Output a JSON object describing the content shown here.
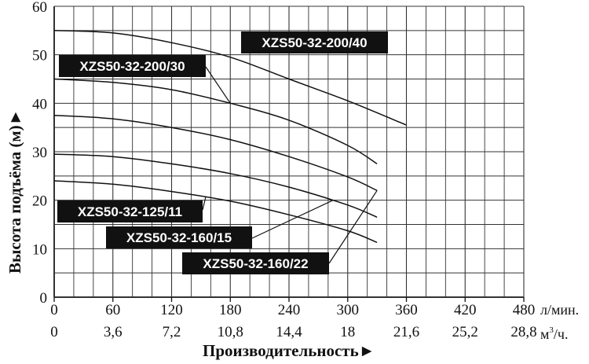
{
  "chart_data": {
    "type": "line",
    "title": "",
    "xlabel": "Производительность►",
    "ylabel": "Высота подъёма (м)►",
    "x_unit_top": "л/мин.",
    "x_unit_bottom_main": "м",
    "x_unit_bottom_sup": "3",
    "x_unit_bottom_tail": "/ч.",
    "xlim": [
      0,
      480
    ],
    "ylim": [
      0,
      60
    ],
    "x_ticks": [
      0,
      60,
      120,
      180,
      240,
      300,
      360,
      420,
      480
    ],
    "x_ticks_top": [
      "0",
      "60",
      "120",
      "180",
      "240",
      "300",
      "360",
      "420",
      "480"
    ],
    "x_ticks_bottom": [
      "0",
      "3,6",
      "7,2",
      "10,8",
      "14,4",
      "18",
      "21,6",
      "25,2",
      "28,8"
    ],
    "y_ticks": [
      "0",
      "10",
      "20",
      "30",
      "40",
      "50",
      "60"
    ],
    "grid": true,
    "series": [
      {
        "name": "XZS50-32-200/40",
        "x": [
          0,
          60,
          120,
          180,
          240,
          300,
          360
        ],
        "y": [
          55,
          54.5,
          52.5,
          49.5,
          45,
          40.5,
          35.5
        ]
      },
      {
        "name": "XZS50-32-200/30",
        "x": [
          0,
          60,
          120,
          180,
          240,
          300,
          330
        ],
        "y": [
          45,
          44.3,
          42.8,
          40,
          36.5,
          31.3,
          27.5
        ]
      },
      {
        "name": "",
        "x": [
          0,
          60,
          120,
          180,
          240,
          300,
          330
        ],
        "y": [
          37.5,
          36.8,
          35,
          32.5,
          29,
          24.8,
          22
        ]
      },
      {
        "name": "XZS50-32-160/22",
        "x": [
          0,
          60,
          120,
          180,
          240,
          300,
          330
        ],
        "y": [
          29.5,
          29,
          27.5,
          25.5,
          22.7,
          19,
          16.5
        ]
      },
      {
        "name": "",
        "x": [
          0,
          60,
          120,
          180,
          240,
          300,
          330
        ],
        "y": [
          24,
          23.3,
          21.8,
          19.8,
          17,
          13.7,
          11.3
        ]
      }
    ],
    "annotations": [
      {
        "text": "XZS50-32-200/40",
        "arrow_to": [
          210,
          50.3
        ]
      },
      {
        "text": "XZS50-32-200/30",
        "arrow_to": [
          180,
          40
        ]
      },
      {
        "text": "XZS50-32-125/11",
        "arrow_to": [
          155,
          20.8
        ]
      },
      {
        "text": "XZS50-32-160/15",
        "arrow_to": [
          285,
          20
        ]
      },
      {
        "text": "XZS50-32-160/22",
        "arrow_to": [
          330,
          22
        ]
      }
    ]
  }
}
